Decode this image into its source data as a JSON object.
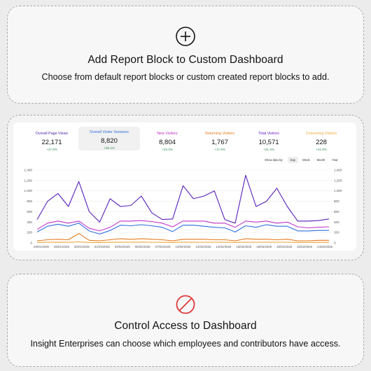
{
  "add_block": {
    "title": "Add Report Block to Custom Dashboard",
    "description": "Choose from default report blocks or custom created report blocks to add.",
    "icon": "plus-circle-icon"
  },
  "access": {
    "title": "Control Access to Dashboard",
    "description": "Insight Enterprises can choose which employees and contributors have access.",
    "icon": "prohibited-icon",
    "icon_color": "#e03a3a"
  },
  "stats": [
    {
      "label": "Overall Page Views",
      "value": "22,171",
      "delta": "+27.5%",
      "color": "#4b1fa0"
    },
    {
      "label": "Overall Visitor Sessions",
      "value": "8,820",
      "delta": "+25.1%",
      "color": "#2f6fdc"
    },
    {
      "label": "New Visitors",
      "value": "8,804",
      "delta": "+23.3%",
      "color": "#c02ec0"
    },
    {
      "label": "Returning Visitors",
      "value": "1,767",
      "delta": "+17.6%",
      "color": "#e57a1f"
    },
    {
      "label": "Total Visitors",
      "value": "10,571",
      "delta": "+21.4%",
      "color": "#6a1fc8"
    },
    {
      "label": "Converting Visitors",
      "value": "228",
      "delta": "+41.6%",
      "color": "#f0a93b"
    }
  ],
  "controls": {
    "show_data_by": "Show data by:",
    "options": [
      "Day",
      "Week",
      "Month",
      "Year"
    ],
    "selected": "Day"
  },
  "chart_data": {
    "type": "line",
    "ylim": [
      0,
      1400
    ],
    "yticks": [
      "0",
      "200",
      "400",
      "600",
      "800",
      "1,000",
      "1,200",
      "1,400"
    ],
    "x_labels": [
      "26/01/2025",
      "28/01/2025",
      "30/01/2025",
      "01/02/2025",
      "03/02/2025",
      "05/02/2025",
      "07/02/2025",
      "10/02/2025",
      "12/02/2025",
      "14/02/2025",
      "16/02/2025",
      "18/02/2025",
      "20/02/2025",
      "22/02/2025",
      "24/02/2025"
    ],
    "series": [
      {
        "name": "Total Visitors",
        "color": "#5a1fb8",
        "values": [
          450,
          800,
          950,
          700,
          1180,
          600,
          400,
          850,
          700,
          720,
          900,
          580,
          450,
          460,
          1100,
          850,
          900,
          1000,
          450,
          380,
          1300,
          700,
          800,
          1050,
          700,
          420,
          420,
          430,
          460
        ]
      },
      {
        "name": "New Visitors",
        "color": "#c238c8",
        "values": [
          260,
          380,
          420,
          380,
          420,
          280,
          230,
          300,
          420,
          420,
          430,
          410,
          380,
          310,
          420,
          420,
          420,
          380,
          380,
          300,
          420,
          400,
          420,
          380,
          400,
          310,
          290,
          300,
          310
        ]
      },
      {
        "name": "Overall Visitor Sessions",
        "color": "#2f6fdc",
        "values": [
          210,
          320,
          360,
          320,
          380,
          230,
          170,
          240,
          340,
          330,
          350,
          330,
          300,
          220,
          340,
          340,
          320,
          300,
          290,
          210,
          330,
          300,
          350,
          320,
          320,
          230,
          230,
          240,
          240
        ]
      },
      {
        "name": "Returning Visitors",
        "color": "#e57a1f",
        "values": [
          40,
          60,
          70,
          60,
          180,
          50,
          40,
          60,
          80,
          70,
          80,
          70,
          60,
          40,
          70,
          70,
          70,
          60,
          60,
          40,
          80,
          70,
          70,
          60,
          70,
          40,
          40,
          50,
          50
        ]
      },
      {
        "name": "Converting Visitors",
        "color": "#f0a93b",
        "values": [
          10,
          12,
          15,
          12,
          20,
          10,
          8,
          12,
          15,
          15,
          16,
          14,
          12,
          10,
          15,
          15,
          14,
          13,
          12,
          9,
          15,
          14,
          15,
          13,
          14,
          10,
          10,
          11,
          11
        ]
      }
    ]
  }
}
